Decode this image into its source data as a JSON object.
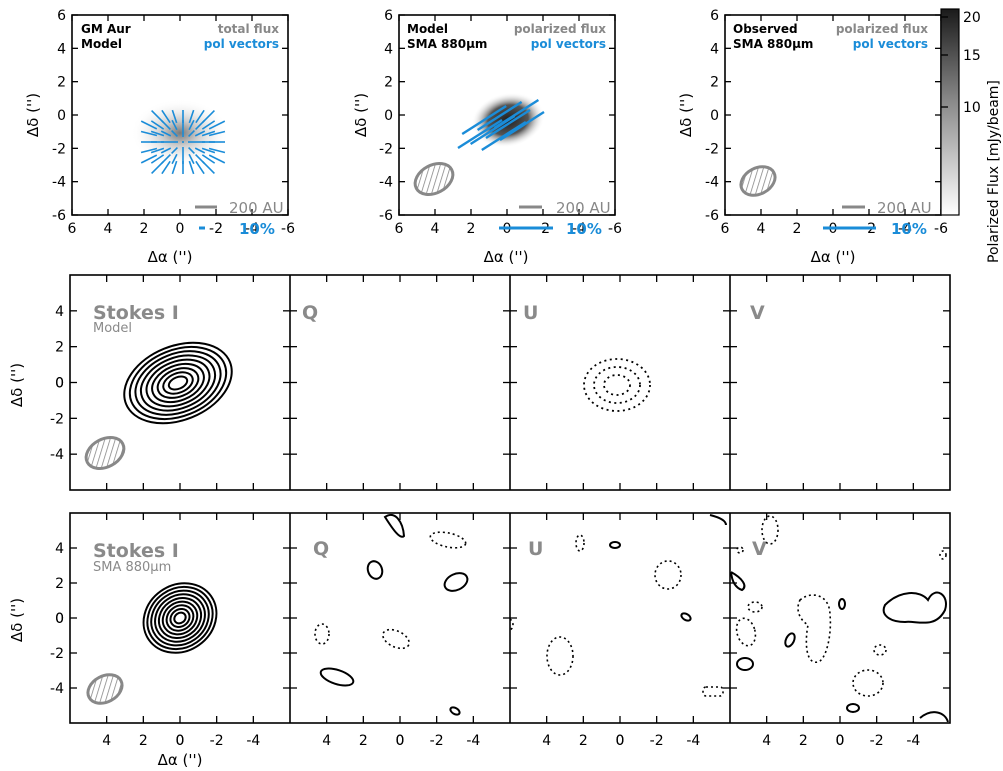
{
  "chart_data": [
    {
      "type": "heatmap",
      "panel": "top-left",
      "labels_left": [
        "GM Aur",
        "Model"
      ],
      "labels_right_gray": "total flux",
      "labels_right_blue": "pol vectors",
      "x_ticks": [
        "6",
        "4",
        "2",
        "0",
        "-2",
        "-4",
        "-6"
      ],
      "y_ticks": [
        "6",
        "4",
        "2",
        "0",
        "-2",
        "-4",
        "-6"
      ],
      "xlim": [
        6,
        -6
      ],
      "ylim": [
        -6,
        6
      ],
      "xlabel": "Δα ('')",
      "ylabel": "Δδ ('')",
      "scale_bar_distance": "200 AU",
      "scale_bar_pol": "10%",
      "pol_scale_bar_length_arcsec": 0.35,
      "beam": null
    },
    {
      "type": "heatmap",
      "panel": "top-middle",
      "labels_left": [
        "Model",
        "SMA 880μm"
      ],
      "labels_right_gray": "polarized flux",
      "labels_right_blue": "pol vectors",
      "x_ticks": [
        "6",
        "4",
        "2",
        "0",
        "-2",
        "-4",
        "-6"
      ],
      "y_ticks": [
        "6",
        "4",
        "2",
        "0",
        "-2",
        "-4",
        "-6"
      ],
      "xlim": [
        6,
        -6
      ],
      "ylim": [
        -6,
        6
      ],
      "xlabel": "Δα ('')",
      "ylabel": "Δδ ('')",
      "scale_bar_distance": "200 AU",
      "scale_bar_pol": "10%",
      "pol_scale_bar_length_arcsec": 2.8,
      "beam": "shown"
    },
    {
      "type": "heatmap",
      "panel": "top-right",
      "labels_left": [
        "Observed",
        "SMA 880μm"
      ],
      "labels_right_gray": "polarized flux",
      "labels_right_blue": "pol vectors",
      "x_ticks": [
        "6",
        "4",
        "2",
        "0",
        "-2",
        "-4",
        "-6"
      ],
      "y_ticks": [
        "6",
        "4",
        "2",
        "0",
        "-2",
        "-4",
        "-6"
      ],
      "xlim": [
        6,
        -6
      ],
      "ylim": [
        -6,
        6
      ],
      "xlabel": "Δα ('')",
      "ylabel": "Δδ ('')",
      "scale_bar_distance": "200 AU",
      "scale_bar_pol": "10%",
      "pol_scale_bar_length_arcsec": 2.8,
      "beam": "shown",
      "colorbar": {
        "label": "Polarized Flux [mJy/beam]",
        "ticks": [
          20,
          15,
          10
        ],
        "range": [
          1,
          20
        ],
        "scale": "log"
      }
    },
    {
      "type": "contour",
      "row": "model",
      "panels": [
        {
          "title": "Stokes I",
          "subtitle": "Model",
          "content": "positive contours centered at (0,0), elongated NE",
          "beam": "shown"
        },
        {
          "title": "Q",
          "content": "no significant contours"
        },
        {
          "title": "U",
          "content": "dotted (negative) contours centered at (0,0)"
        },
        {
          "title": "V",
          "content": "no significant contours"
        }
      ],
      "x_ticks": [
        "4",
        "2",
        "0",
        "-2",
        "-4"
      ],
      "y_ticks": [
        "4",
        "2",
        "0",
        "-2",
        "-4"
      ],
      "xlim": [
        6,
        -6
      ],
      "ylim": [
        -6,
        6
      ],
      "ylabel": "Δδ ('')"
    },
    {
      "type": "contour",
      "row": "observed",
      "panels": [
        {
          "title": "Stokes I",
          "subtitle": "SMA 880μm",
          "content": "positive contours centered at (0,0)",
          "beam": "shown"
        },
        {
          "title": "Q",
          "content": "scattered noise contours, solid and dotted"
        },
        {
          "title": "U",
          "content": "scattered noise contours, solid and dotted"
        },
        {
          "title": "V",
          "content": "scattered noise contours, solid and dotted"
        }
      ],
      "x_ticks": [
        "4",
        "2",
        "0",
        "-2",
        "-4"
      ],
      "y_ticks": [
        "4",
        "2",
        "0",
        "-2",
        "-4"
      ],
      "xlim": [
        6,
        -6
      ],
      "ylim": [
        -6,
        6
      ],
      "xlabel": "Δα ('')",
      "ylabel": "Δδ ('')"
    }
  ],
  "colors": {
    "gray_text": "#888888",
    "blue_vectors": "#1a8cd8",
    "beam_gray": "#888888"
  }
}
